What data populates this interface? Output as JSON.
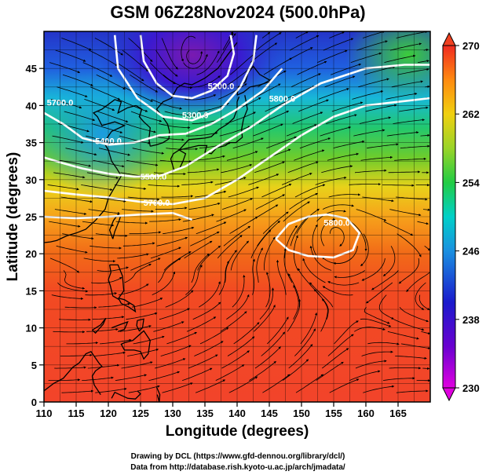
{
  "title": "GSM 06Z28Nov2024 (500.0hPa)",
  "map": {
    "xlabel": "Longitude (degrees)",
    "ylabel": "Latitude  (degrees)",
    "xlim": [
      110,
      170
    ],
    "ylim": [
      0,
      50
    ],
    "x_ticks": [
      110,
      115,
      120,
      125,
      130,
      135,
      140,
      145,
      150,
      155,
      160,
      165
    ],
    "y_ticks": [
      0,
      5,
      10,
      15,
      20,
      25,
      30,
      35,
      40,
      45
    ],
    "grid": true,
    "fill_variable_range_K": [
      230,
      270
    ],
    "contour_labels": [
      {
        "text": "5200.0",
        "lon": 137.5,
        "lat": 42.2
      },
      {
        "text": "5300.0",
        "lon": 133.5,
        "lat": 38.3
      },
      {
        "text": "5400.0",
        "lon": 120.0,
        "lat": 34.8
      },
      {
        "text": "5500.0",
        "lon": 127.0,
        "lat": 30.0
      },
      {
        "text": "5700.0",
        "lon": 127.5,
        "lat": 26.5
      },
      {
        "text": "5800.0",
        "lon": 147.0,
        "lat": 40.5
      },
      {
        "text": "5700.0",
        "lon": 112.5,
        "lat": 40.0
      },
      {
        "text": "5800.0",
        "lon": 155.5,
        "lat": 23.8
      }
    ],
    "colors": {
      "low": "#cc00cc",
      "blue": "#1a1acc",
      "cyan": "#00c8e6",
      "green": "#33cc33",
      "yellow": "#e6d600",
      "orange": "#ff9900",
      "red": "#f03c1e",
      "contour": "#ffffff",
      "streamline": "#000000"
    }
  },
  "colorbar": {
    "ticks": [
      "270",
      "262",
      "254",
      "246",
      "238",
      "230"
    ]
  },
  "credits": [
    "Drawing by DCL (https://www.gfd-dennou.org/library/dcl/)",
    "Data from http://database.rish.kyoto-u.ac.jp/arch/jmadata/"
  ]
}
